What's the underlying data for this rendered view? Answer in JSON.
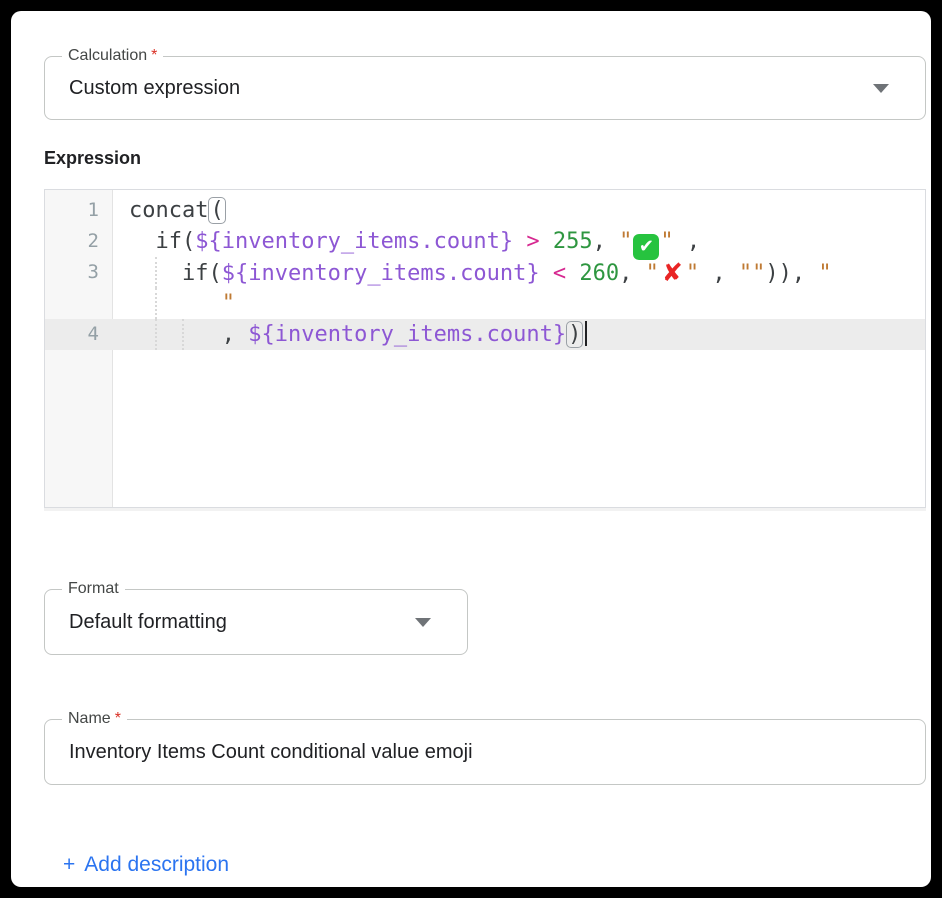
{
  "calculation": {
    "label": "Calculation",
    "required_marker": "*",
    "value": "Custom expression"
  },
  "expression": {
    "label": "Expression",
    "full_text": "concat(\n  if(${inventory_items.count} > 255, \"✅\" ,\n    if(${inventory_items.count} < 260, \"❌\" , \"\")), \" \"\n       , ${inventory_items.count})",
    "lines": [
      {
        "number": "1",
        "active": false,
        "rows": [
          {
            "guides": [],
            "tokens": [
              {
                "t": "plain",
                "v": "concat"
              },
              {
                "t": "bracket",
                "v": "("
              }
            ]
          }
        ]
      },
      {
        "number": "2",
        "active": false,
        "rows": [
          {
            "guides": [],
            "tokens": [
              {
                "t": "plain",
                "v": "  if("
              },
              {
                "t": "field",
                "v": "${inventory_items.count}"
              },
              {
                "t": "plain",
                "v": " "
              },
              {
                "t": "op",
                "v": ">"
              },
              {
                "t": "plain",
                "v": " "
              },
              {
                "t": "num",
                "v": "255"
              },
              {
                "t": "plain",
                "v": ", "
              },
              {
                "t": "q",
                "v": "\""
              },
              {
                "t": "emoji",
                "v": "check"
              },
              {
                "t": "q",
                "v": "\""
              },
              {
                "t": "plain",
                "v": " ,"
              }
            ]
          }
        ]
      },
      {
        "number": "3",
        "active": false,
        "rows": [
          {
            "guides": [
              1
            ],
            "tokens": [
              {
                "t": "plain",
                "v": "    if("
              },
              {
                "t": "field",
                "v": "${inventory_items.count}"
              },
              {
                "t": "plain",
                "v": " "
              },
              {
                "t": "op",
                "v": "<"
              },
              {
                "t": "plain",
                "v": " "
              },
              {
                "t": "num",
                "v": "260"
              },
              {
                "t": "plain",
                "v": ", "
              },
              {
                "t": "q",
                "v": "\""
              },
              {
                "t": "emoji",
                "v": "cross"
              },
              {
                "t": "q",
                "v": "\""
              },
              {
                "t": "plain",
                "v": " , "
              },
              {
                "t": "q",
                "v": "\""
              },
              {
                "t": "q",
                "v": "\""
              },
              {
                "t": "plain",
                "v": ")), "
              },
              {
                "t": "q",
                "v": "\""
              }
            ]
          },
          {
            "guides": [
              1
            ],
            "tokens": [
              {
                "t": "plain",
                "v": "       "
              },
              {
                "t": "q",
                "v": "\""
              }
            ]
          }
        ]
      },
      {
        "number": "4",
        "active": true,
        "rows": [
          {
            "guides": [
              1,
              2
            ],
            "tokens": [
              {
                "t": "plain",
                "v": "       , "
              },
              {
                "t": "field",
                "v": "${inventory_items.count}"
              },
              {
                "t": "bracket",
                "v": ")"
              },
              {
                "t": "caret",
                "v": ""
              }
            ]
          }
        ]
      }
    ]
  },
  "format": {
    "label": "Format",
    "value": "Default formatting"
  },
  "name_field": {
    "label": "Name",
    "required_marker": "*",
    "value": "Inventory Items Count conditional value emoji"
  },
  "add_description": {
    "plus": "+",
    "label": "Add description"
  },
  "colors": {
    "accent_link_blue": "#2b74f0",
    "required_red": "#d93025",
    "code_field_purple": "#8d57d4",
    "code_operator_pink": "#d62890",
    "code_number_green": "#2e9640",
    "code_string_orange": "#bf7a33",
    "emoji_check_green": "#27c33f",
    "emoji_cross_red": "#e92525",
    "active_line_gray": "#ececec"
  }
}
